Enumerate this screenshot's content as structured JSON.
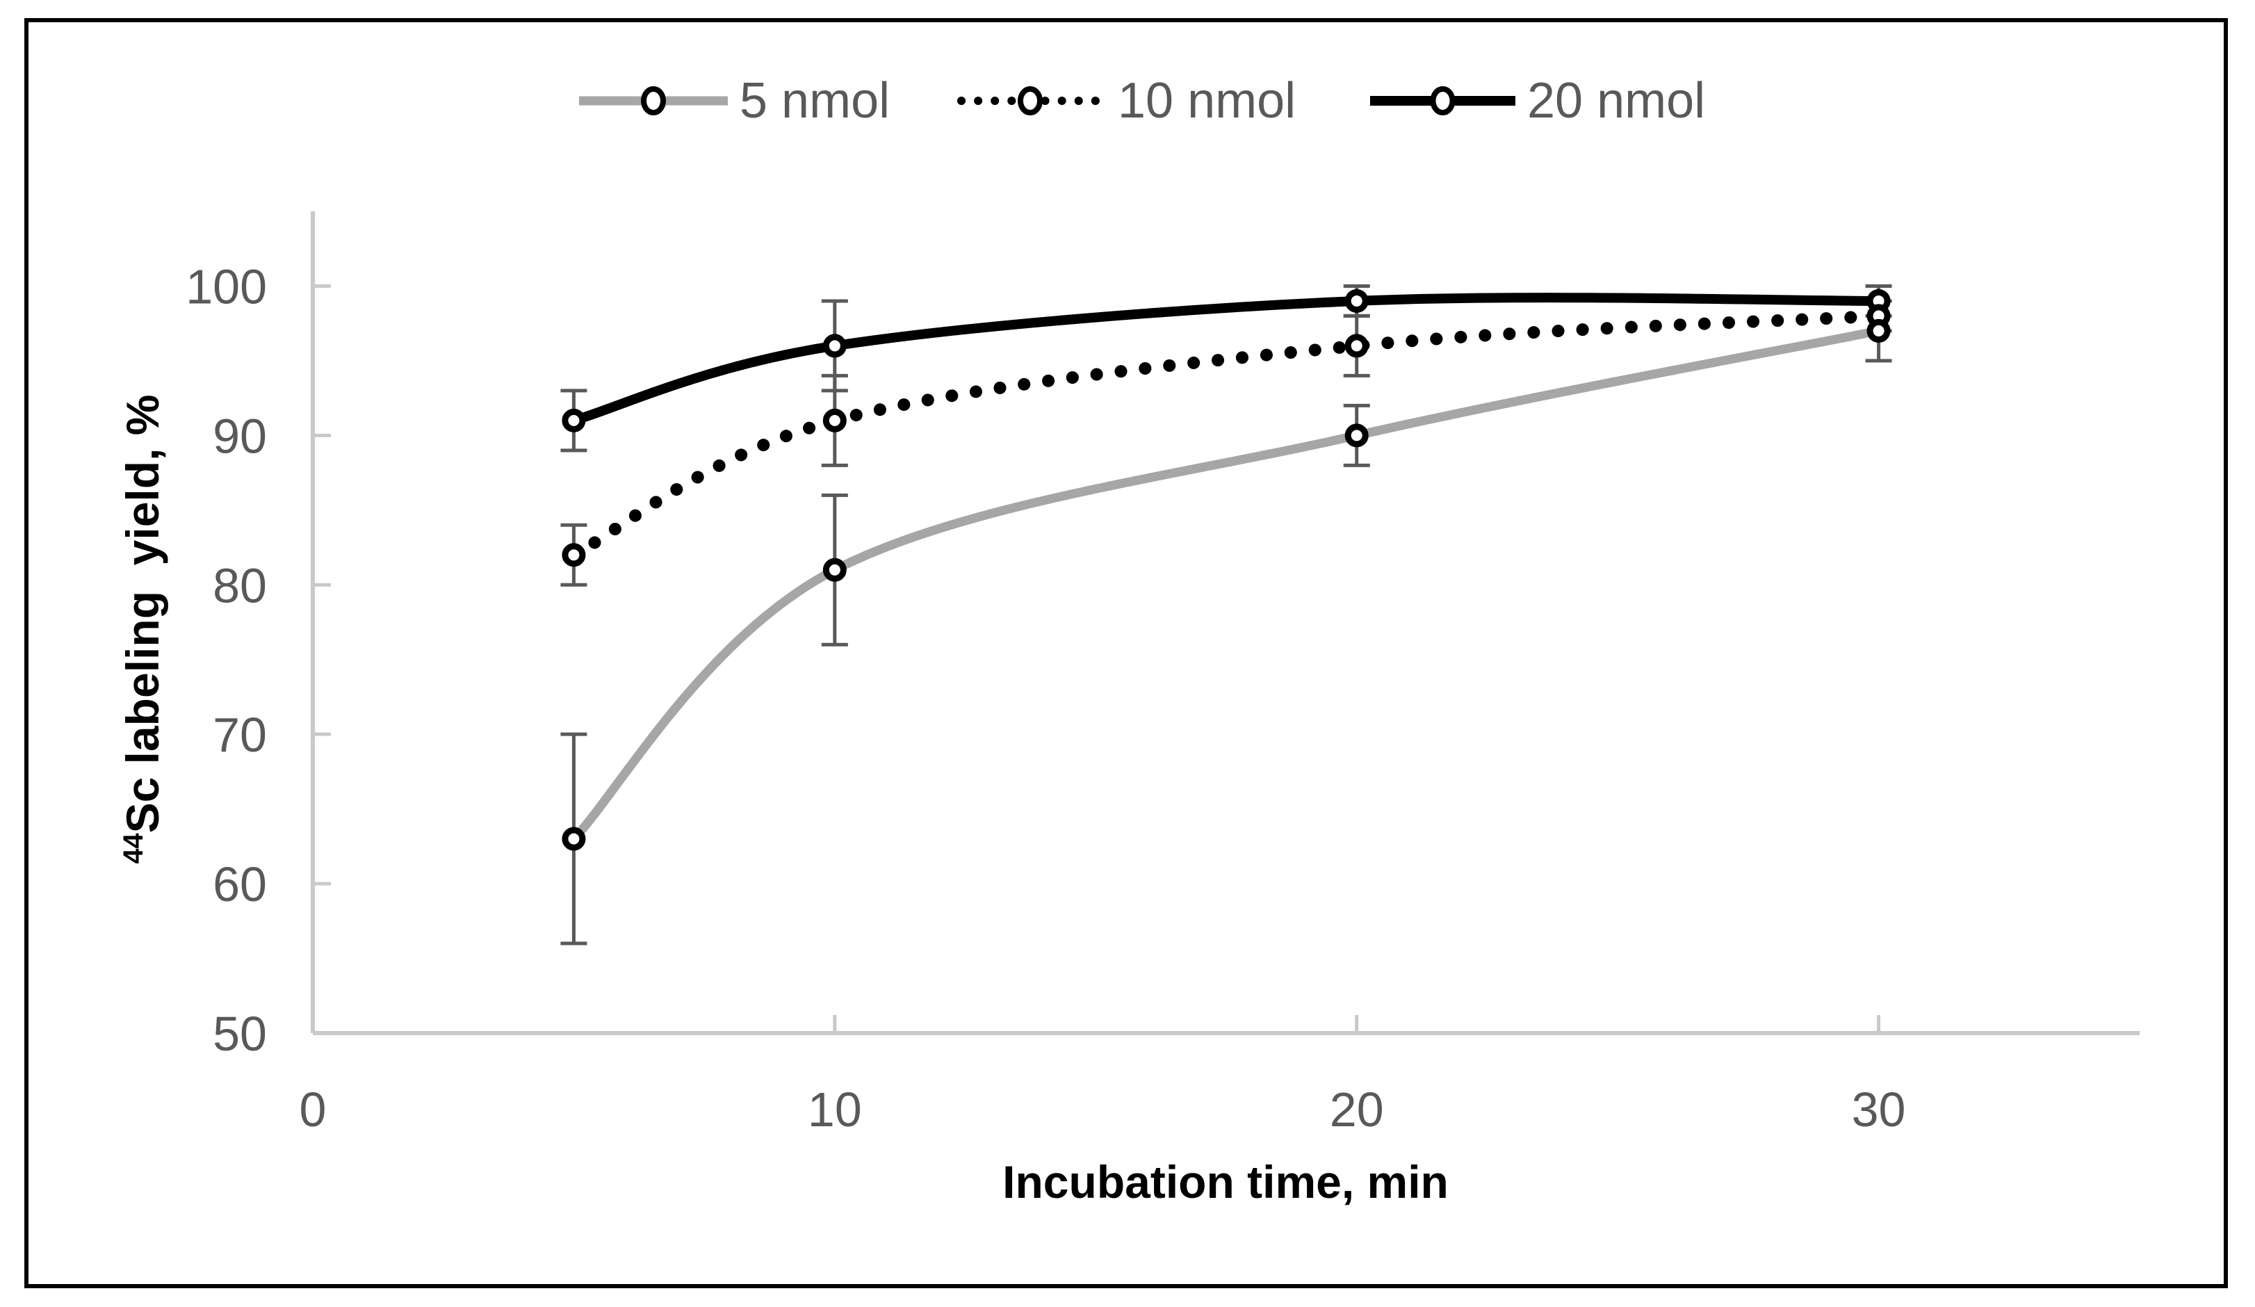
{
  "figure": {
    "border_color": "#000000",
    "background_color": "#ffffff"
  },
  "chart_data": {
    "type": "line",
    "title": "",
    "xlabel": "Incubation time, min",
    "ylabel": "44Sc labeling yield, %",
    "ylabel_sup": "44",
    "ylabel_main": "Sc labeling  yield, %",
    "x": [
      5,
      10,
      20,
      30
    ],
    "xlim": [
      0,
      35
    ],
    "ylim": [
      50,
      105
    ],
    "xticks": [
      0,
      10,
      20,
      30
    ],
    "yticks": [
      50,
      60,
      70,
      80,
      90,
      100
    ],
    "grid": false,
    "legend_position": "top-center",
    "axis_color": "#c9c9c9",
    "tick_label_color": "#595959",
    "error_bar_color": "#595959",
    "marker_style": "open-circle-white-fill-black-stroke",
    "series": [
      {
        "name": "5 nmol",
        "color": "#a6a6a6",
        "line_style": "solid",
        "marker": "open-circle",
        "values": [
          63,
          81,
          90,
          97
        ],
        "errors": [
          7,
          5,
          2,
          2
        ]
      },
      {
        "name": "10 nmol",
        "color": "#000000",
        "line_style": "dotted",
        "marker": "open-circle",
        "values": [
          82,
          91,
          96,
          98
        ],
        "errors": [
          2,
          3,
          2,
          1
        ]
      },
      {
        "name": "20 nmol",
        "color": "#000000",
        "line_style": "solid",
        "marker": "open-circle",
        "values": [
          91,
          96,
          99,
          99
        ],
        "errors": [
          2,
          3,
          1,
          1
        ]
      }
    ]
  }
}
